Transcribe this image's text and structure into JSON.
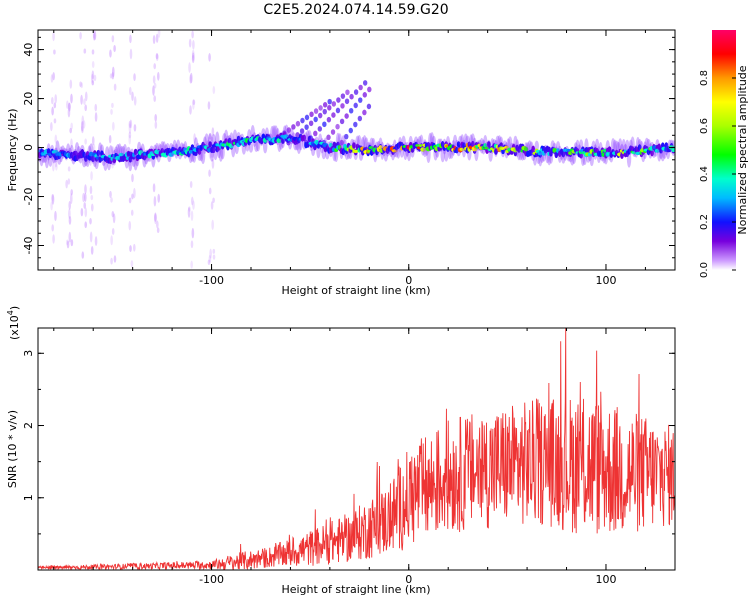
{
  "title": "C2E5.2024.074.14.59.G20",
  "chart_data": [
    {
      "type": "heatmap",
      "xlabel": "Height of straight line (km)",
      "ylabel": "Frequency (Hz)",
      "xlim": [
        -188,
        135
      ],
      "ylim": [
        -50,
        48
      ],
      "xticks": [
        -100,
        0,
        100
      ],
      "yticks": [
        -40,
        -20,
        0,
        20,
        40
      ],
      "colorbar": {
        "label": "Normalized spectral amplitude",
        "range": [
          0,
          1
        ],
        "ticks": [
          0.0,
          0.2,
          0.4,
          0.6,
          0.8
        ],
        "colormap": [
          "#ffffff",
          "#cc99ff",
          "#7700dd",
          "#1111ff",
          "#00bbff",
          "#00ffcc",
          "#00ff00",
          "#aaff00",
          "#ffff00",
          "#ff9900",
          "#ff0000",
          "#ff0066"
        ]
      },
      "ridge": [
        {
          "x": -188,
          "f": -2,
          "amp": 0.35
        },
        {
          "x": -150,
          "f": -4,
          "amp": 0.4
        },
        {
          "x": -120,
          "f": -2,
          "amp": 0.45
        },
        {
          "x": -100,
          "f": 0,
          "amp": 0.45
        },
        {
          "x": -80,
          "f": 3,
          "amp": 0.5
        },
        {
          "x": -60,
          "f": 4,
          "amp": 0.45
        },
        {
          "x": -40,
          "f": 0,
          "amp": 0.45
        },
        {
          "x": -20,
          "f": -1,
          "amp": 0.85
        },
        {
          "x": 0,
          "f": 0,
          "amp": 0.9
        },
        {
          "x": 40,
          "f": 0,
          "amp": 0.8
        },
        {
          "x": 75,
          "f": -2,
          "amp": 0.55
        },
        {
          "x": 110,
          "f": -2,
          "amp": 0.65
        },
        {
          "x": 135,
          "f": 0,
          "amp": 0.5
        }
      ]
    },
    {
      "type": "line",
      "xlabel": "Height of straight line (km)",
      "ylabel": "SNR (10 * v/v)",
      "yscale_label": "(x10",
      "yscale_exp": "4",
      "xlim": [
        -188,
        135
      ],
      "ylim": [
        0,
        3.35
      ],
      "xticks": [
        -100,
        0,
        100
      ],
      "yticks": [
        1,
        2,
        3
      ],
      "color": "#ee3333",
      "envelope": {
        "x": [
          -188,
          -140,
          -100,
          -90,
          -70,
          -50,
          -30,
          -10,
          0,
          20,
          50,
          70,
          90,
          110,
          135
        ],
        "mean": [
          0.03,
          0.05,
          0.07,
          0.1,
          0.18,
          0.3,
          0.45,
          0.7,
          1.0,
          1.3,
          1.45,
          1.5,
          1.45,
          1.35,
          1.3
        ],
        "spread": [
          0.02,
          0.04,
          0.06,
          0.12,
          0.15,
          0.25,
          0.35,
          0.5,
          0.7,
          0.8,
          0.85,
          0.9,
          1.0,
          0.9,
          0.7
        ]
      }
    }
  ]
}
